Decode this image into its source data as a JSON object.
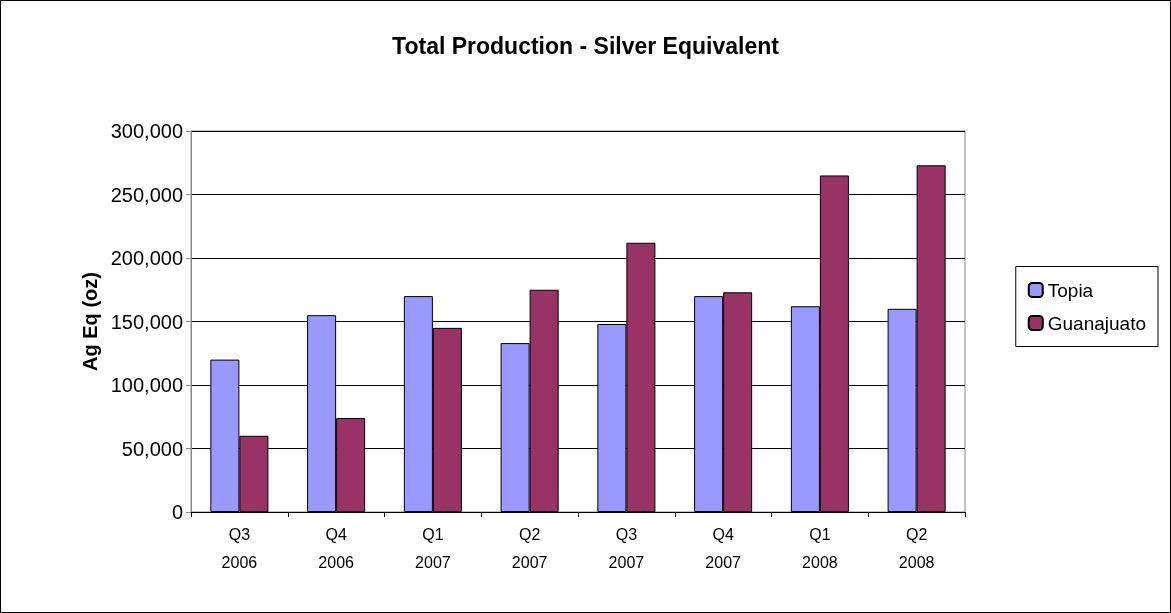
{
  "chart_data": {
    "type": "bar",
    "title": "Total Production - Silver Equivalent",
    "ylabel": "Ag Eq (oz)",
    "categories": [
      "Q3\n2006",
      "Q4\n2006",
      "Q1\n2007",
      "Q2\n2007",
      "Q3\n2007",
      "Q4\n2007",
      "Q1\n2008",
      "Q2\n2008"
    ],
    "series": [
      {
        "name": "Topia",
        "color": "#9999ff",
        "values": [
          120000,
          155000,
          170000,
          133000,
          148000,
          170000,
          162000,
          160000
        ]
      },
      {
        "name": "Guanajuato",
        "color": "#993366",
        "values": [
          60000,
          74000,
          145000,
          175000,
          212000,
          173000,
          265000,
          273000
        ]
      }
    ],
    "ylim": [
      0,
      300000
    ],
    "yticks": [
      0,
      {
        "value": 50000,
        "label": "50,000"
      },
      {
        "value": 100000,
        "label": "100,000"
      },
      {
        "value": 150000,
        "label": "150,000"
      },
      {
        "value": 200000,
        "label": "200,000"
      },
      {
        "value": 250000,
        "label": "250,000"
      },
      {
        "value": 300000,
        "label": "300,000"
      }
    ],
    "grid": "y",
    "legend": "right"
  }
}
